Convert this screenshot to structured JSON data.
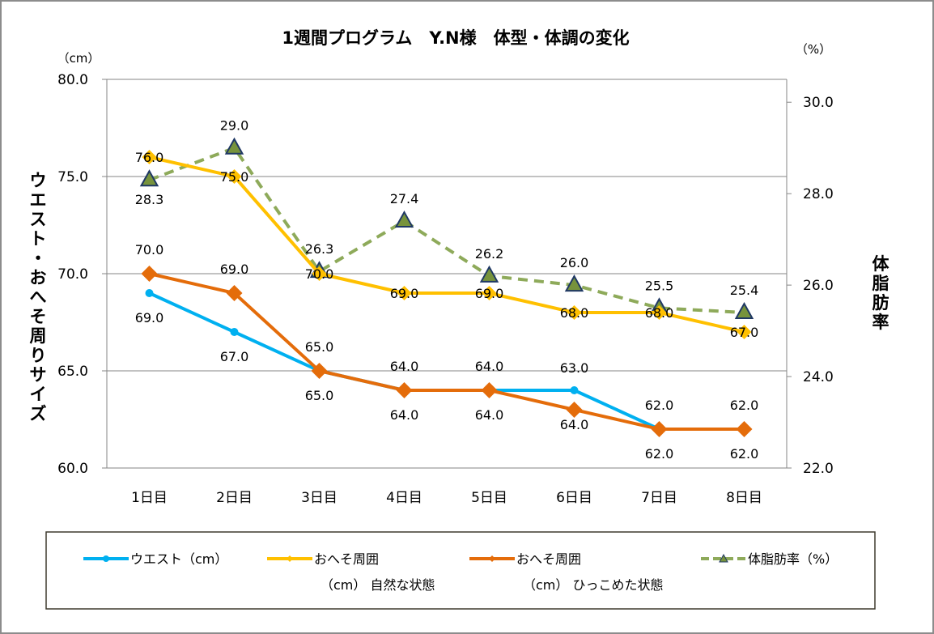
{
  "chart_data": {
    "type": "line",
    "title": "1週間プログラム　Y.N様　体型・体調の変化",
    "categories": [
      "1日目",
      "2日目",
      "3日目",
      "4日目",
      "5日目",
      "6日目",
      "7日目",
      "8日目"
    ],
    "y_left": {
      "unit": "（cm）",
      "label": "ウエスト・おへそ周りサイズ",
      "range": [
        60,
        80
      ],
      "ticks": [
        "60.0",
        "65.0",
        "70.0",
        "75.0",
        "80.0"
      ],
      "tick_values": [
        60,
        65,
        70,
        75,
        80
      ]
    },
    "y_right": {
      "unit": "（%）",
      "label": "体脂肪率",
      "range": [
        22,
        30.5
      ],
      "ticks": [
        "22.0",
        "24.0",
        "26.0",
        "28.0",
        "30.0"
      ],
      "tick_values": [
        22,
        24,
        26,
        28,
        30
      ]
    },
    "gridlines": true,
    "legend_position": "bottom",
    "series": [
      {
        "name": "ウエスト（cm）",
        "legend_lines": [
          "ウエスト（cm）"
        ],
        "axis": "left",
        "color": "#00b0f0",
        "marker": "circle",
        "dash": false,
        "values": [
          69,
          67,
          65,
          64,
          64,
          64,
          62,
          62
        ],
        "labels": [
          "69.0",
          "67.0",
          "65.0",
          "64.0",
          "64.0",
          "64.0",
          "62.0",
          "62.0"
        ],
        "label_position": "below"
      },
      {
        "name": "おへそ周囲（cm）自然な状態",
        "legend_lines": [
          "おへそ周囲",
          "（cm）  自然な状態"
        ],
        "axis": "left",
        "color": "#ffc000",
        "marker": "diamond-small",
        "dash": false,
        "values": [
          76,
          75,
          70,
          69,
          69,
          68,
          68,
          67
        ],
        "labels": [
          "76.0",
          "75.0",
          "70.0",
          "69.0",
          "69.0",
          "68.0",
          "68.0",
          "67.0"
        ],
        "label_position": "center"
      },
      {
        "name": "おへそ周囲（cm）ひっこめた状態",
        "legend_lines": [
          "おへそ周囲",
          "（cm）  ひっこめた状態"
        ],
        "axis": "left",
        "color": "#e46c0a",
        "marker": "diamond",
        "dash": false,
        "values": [
          70,
          69,
          65,
          64,
          64,
          63,
          62,
          62
        ],
        "labels": [
          "70.0",
          "69.0",
          "65.0",
          "64.0",
          "64.0",
          "63.0",
          "62.0",
          "62.0"
        ],
        "label_position": "above"
      },
      {
        "name": "体脂肪率（%）",
        "legend_lines": [
          "体脂肪率（%）"
        ],
        "axis": "right",
        "color": "#8eaa5a",
        "marker": "triangle",
        "marker_fill": "#77933c",
        "marker_stroke": "#1f3864",
        "dash": true,
        "values": [
          28.3,
          29.0,
          26.3,
          27.4,
          26.2,
          26.0,
          25.5,
          25.4
        ],
        "labels": [
          "28.3",
          "29.0",
          "26.3",
          "27.4",
          "26.2",
          "26.0",
          "25.5",
          "25.4"
        ],
        "label_position": "mixed"
      }
    ]
  }
}
